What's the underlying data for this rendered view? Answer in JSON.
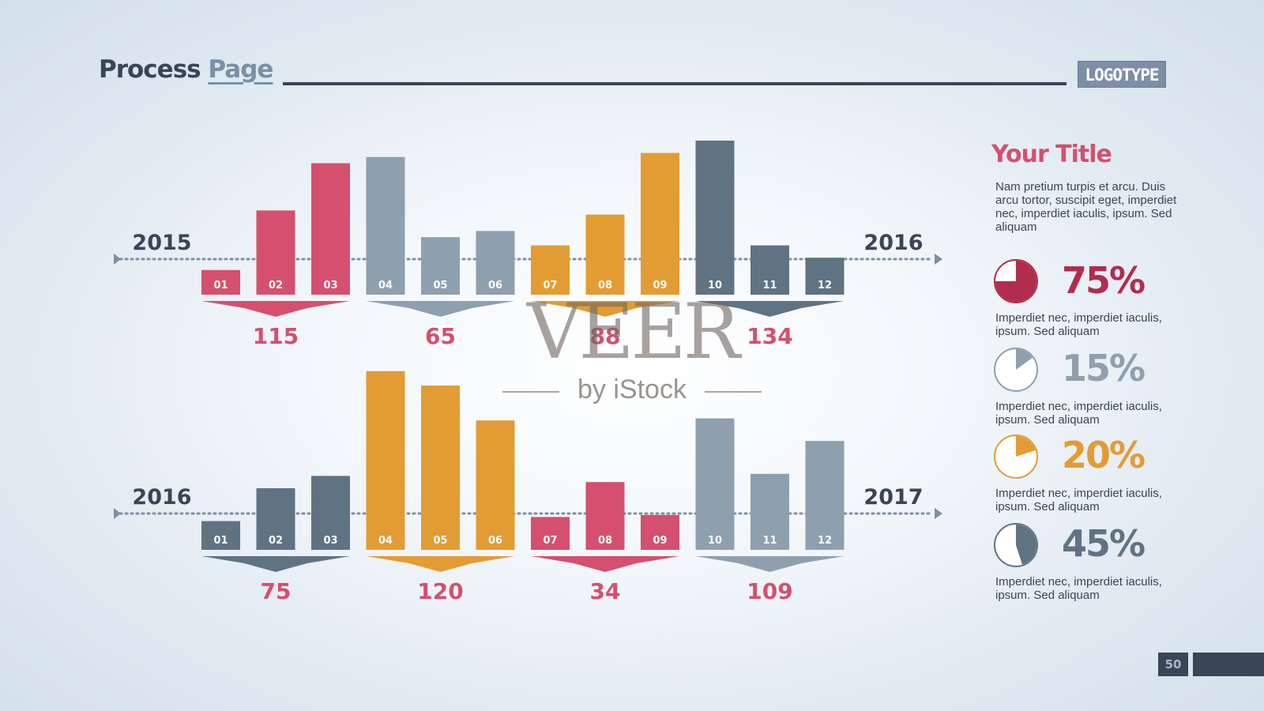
{
  "header": {
    "title_main": "Process",
    "title_accent": "Page",
    "logo": "LOGOTYPE"
  },
  "colors": {
    "crimson": "#d4506e",
    "grey": "#8e9fae",
    "orange": "#e39c34",
    "slate": "#5f7383",
    "dark": "#3a4556",
    "pie_crimson": "#b12d4e"
  },
  "chart_data": [
    {
      "type": "bar",
      "start_label": "2015",
      "end_label": "2016",
      "categories": [
        "01",
        "02",
        "03",
        "04",
        "05",
        "06",
        "07",
        "08",
        "09",
        "10",
        "11",
        "12"
      ],
      "values": [
        12,
        41,
        64,
        67,
        28,
        31,
        24,
        39,
        69,
        75,
        24,
        18
      ],
      "bar_colors": [
        "crimson",
        "crimson",
        "crimson",
        "grey",
        "grey",
        "grey",
        "orange",
        "orange",
        "orange",
        "slate",
        "slate",
        "slate"
      ],
      "groups": [
        {
          "value": "115",
          "color": "crimson"
        },
        {
          "value": "65",
          "color": "crimson"
        },
        {
          "value": "88",
          "color": "crimson"
        },
        {
          "value": "134",
          "color": "crimson"
        }
      ],
      "group_arrow_colors": [
        "crimson",
        "grey",
        "orange",
        "slate"
      ]
    },
    {
      "type": "bar",
      "start_label": "2016",
      "end_label": "2017",
      "categories": [
        "01",
        "02",
        "03",
        "04",
        "05",
        "06",
        "07",
        "08",
        "09",
        "10",
        "11",
        "12"
      ],
      "values": [
        14,
        30,
        36,
        87,
        80,
        63,
        16,
        33,
        17,
        64,
        37,
        53
      ],
      "bar_colors": [
        "slate",
        "slate",
        "slate",
        "orange",
        "orange",
        "orange",
        "crimson",
        "crimson",
        "crimson",
        "grey",
        "grey",
        "grey"
      ],
      "groups": [
        {
          "value": "75",
          "color": "crimson"
        },
        {
          "value": "120",
          "color": "crimson"
        },
        {
          "value": "34",
          "color": "crimson"
        },
        {
          "value": "109",
          "color": "crimson"
        }
      ],
      "group_arrow_colors": [
        "slate",
        "orange",
        "crimson",
        "grey"
      ]
    }
  ],
  "sidebar": {
    "title": "Your Title",
    "intro": "Nam pretium turpis et arcu. Duis arcu tortor, suscipit eget, imperdiet nec, imperdiet iaculis, ipsum. Sed aliquam",
    "stats": [
      {
        "value": "75%",
        "fraction": 0.75,
        "color": "#b12d4e",
        "text": "Imperdiet nec, imperdiet iaculis, ipsum. Sed aliquam"
      },
      {
        "value": "15%",
        "fraction": 0.15,
        "color": "#8e9fae",
        "text": "Imperdiet nec, imperdiet iaculis, ipsum. Sed aliquam"
      },
      {
        "value": "20%",
        "fraction": 0.2,
        "color": "#e39c34",
        "text": "Imperdiet nec, imperdiet iaculis, ipsum. Sed aliquam"
      },
      {
        "value": "45%",
        "fraction": 0.45,
        "color": "#5f7383",
        "text": "Imperdiet nec, imperdiet iaculis, ipsum. Sed aliquam"
      }
    ]
  },
  "watermark": {
    "brand": "VEER",
    "tagline": "by iStock"
  },
  "page_number": "50"
}
